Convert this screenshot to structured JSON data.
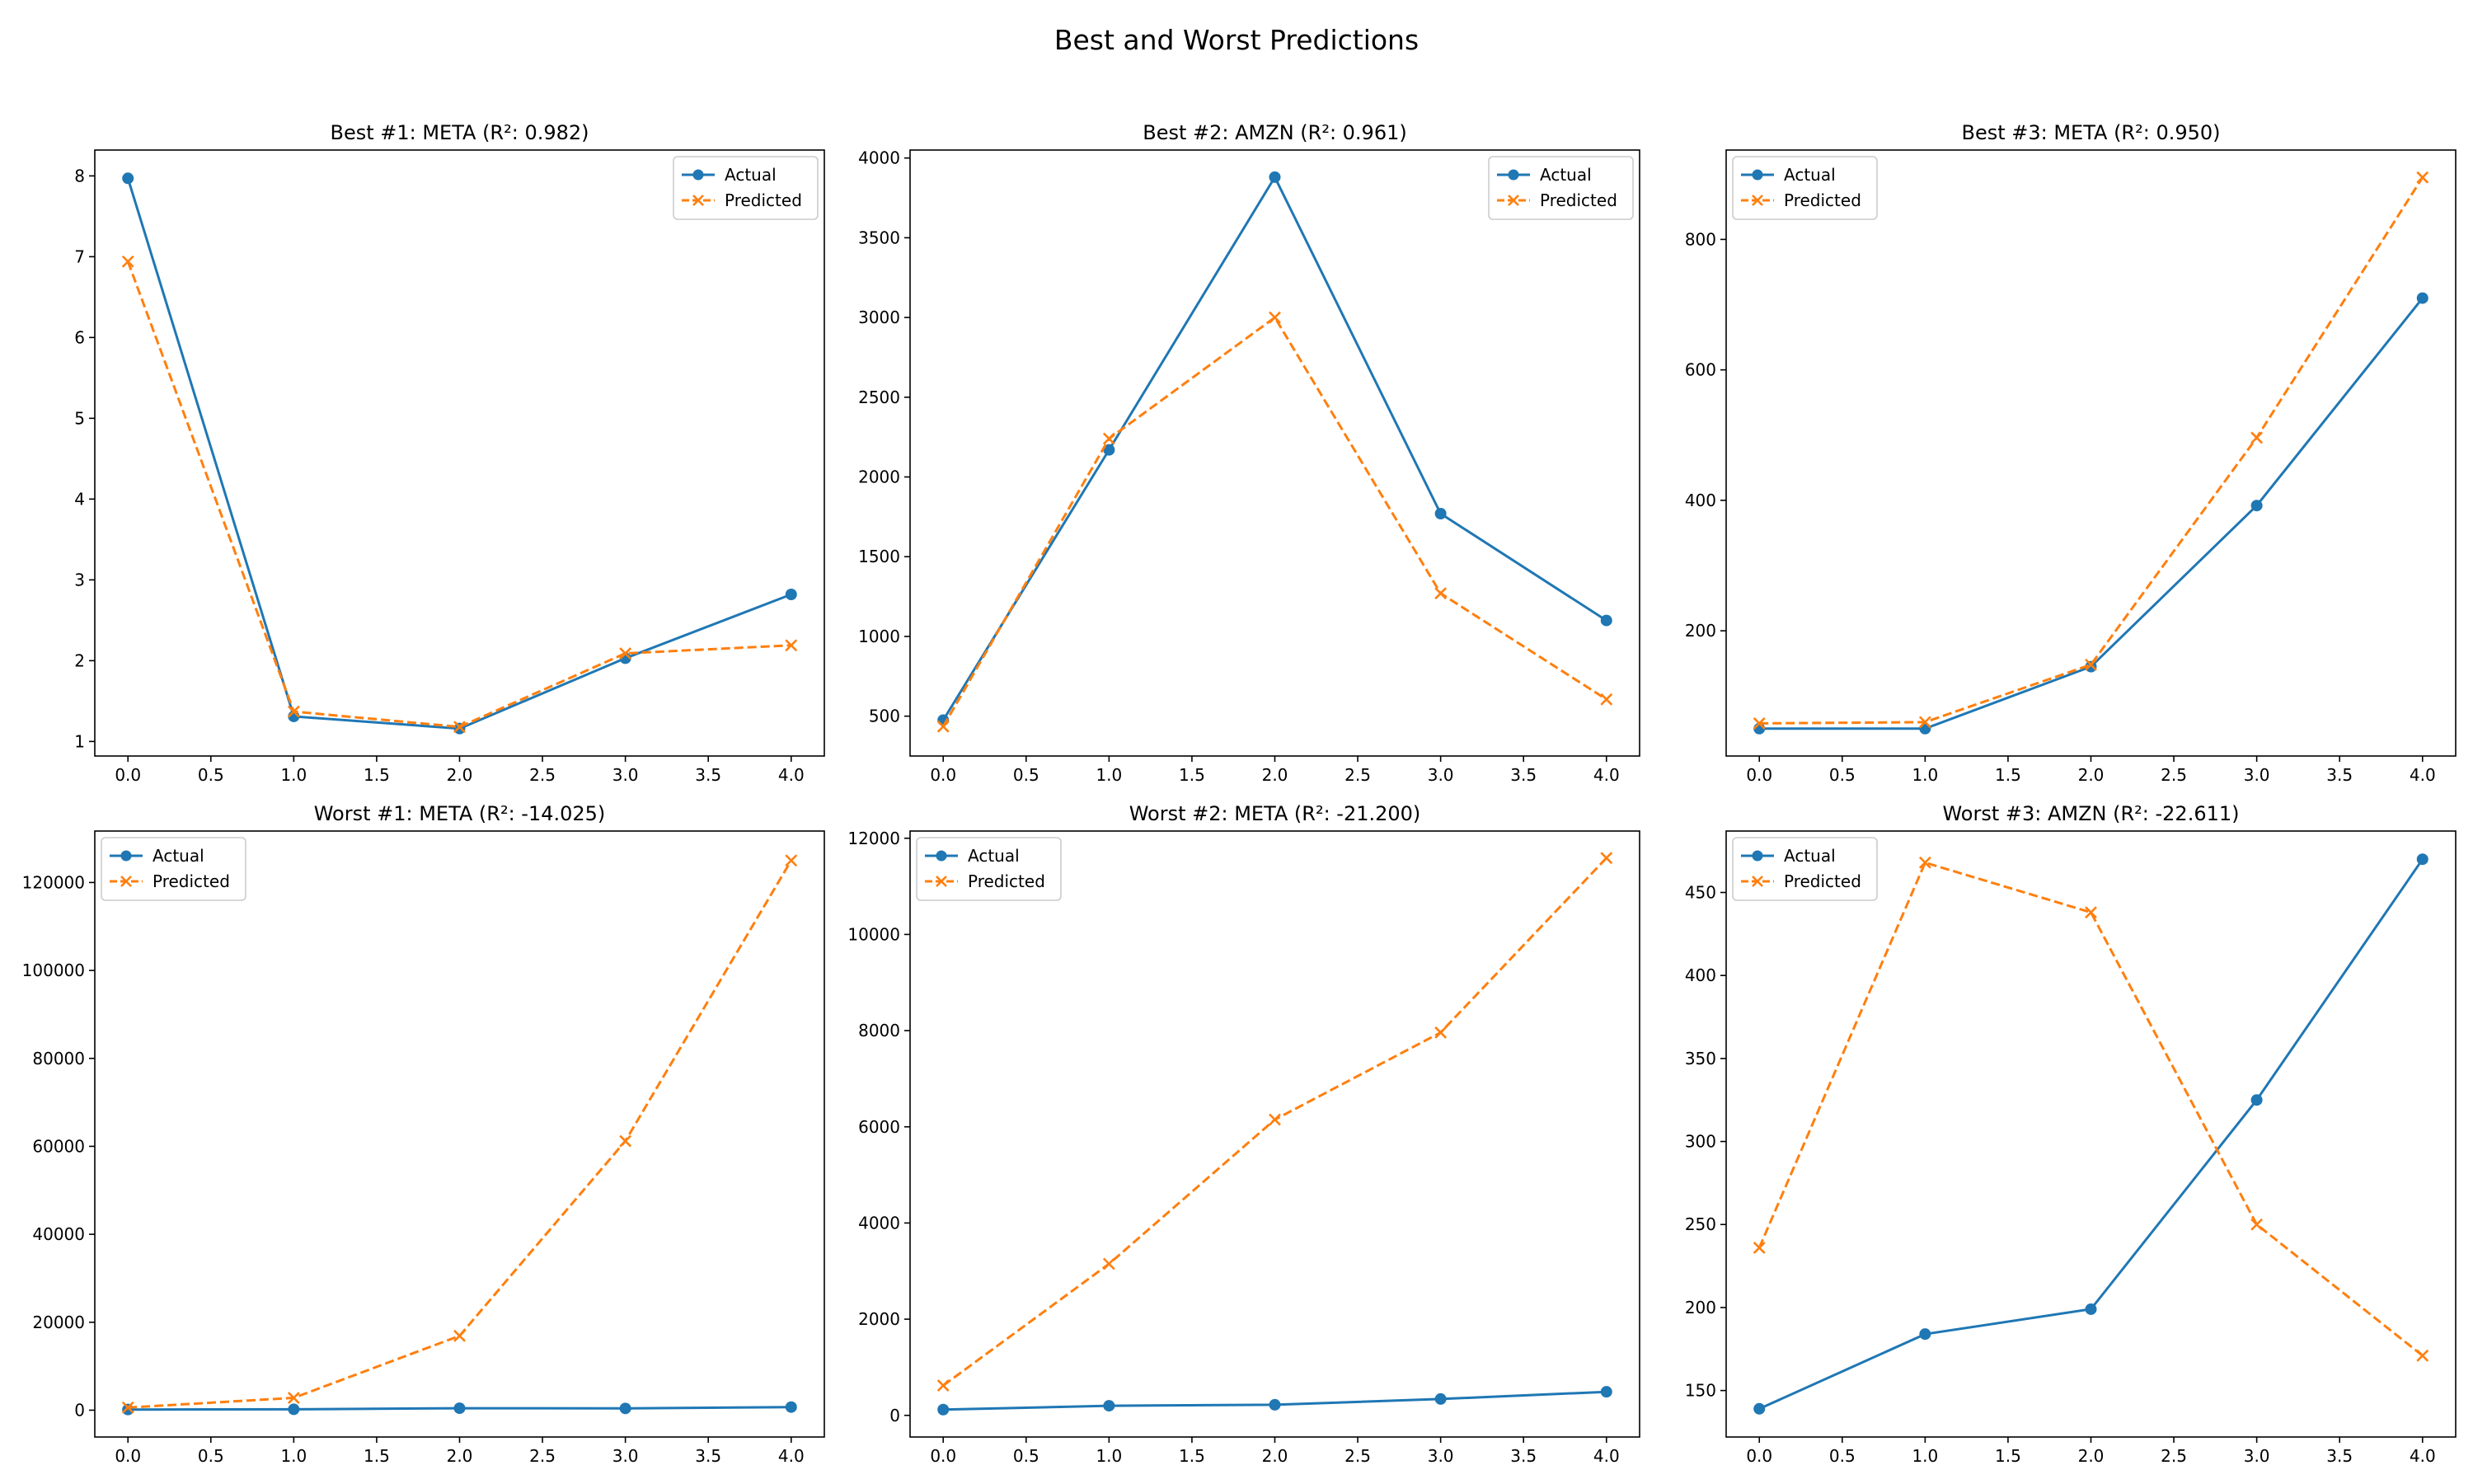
{
  "figure": {
    "suptitle": "Best and Worst Predictions"
  },
  "colors": {
    "actual": "#1f77b4",
    "predicted": "#ff7f0e"
  },
  "chart_data": [
    {
      "type": "line",
      "title": "Best #1: META (R²: 0.982)",
      "x": [
        0,
        1,
        2,
        3,
        4
      ],
      "series": [
        {
          "name": "Actual",
          "values": [
            7.97,
            1.31,
            1.16,
            2.03,
            2.82
          ]
        },
        {
          "name": "Predicted",
          "values": [
            6.94,
            1.37,
            1.18,
            2.09,
            2.19
          ]
        }
      ],
      "xlim": [
        -0.2,
        4.2
      ],
      "ylim": [
        0.82,
        8.32
      ],
      "xticks": [
        "0.0",
        "0.5",
        "1.0",
        "1.5",
        "2.0",
        "2.5",
        "3.0",
        "3.5",
        "4.0"
      ],
      "yticks": [
        "1",
        "2",
        "3",
        "4",
        "5",
        "6",
        "7",
        "8"
      ],
      "legend_loc": "upper right"
    },
    {
      "type": "line",
      "title": "Best #2: AMZN (R²: 0.961)",
      "x": [
        0,
        1,
        2,
        3,
        4
      ],
      "series": [
        {
          "name": "Actual",
          "values": [
            475,
            2170,
            3880,
            1770,
            1100
          ]
        },
        {
          "name": "Predicted",
          "values": [
            435,
            2240,
            3000,
            1270,
            605
          ]
        }
      ],
      "xlim": [
        -0.2,
        4.2
      ],
      "ylim": [
        250,
        4050
      ],
      "xticks": [
        "0.0",
        "0.5",
        "1.0",
        "1.5",
        "2.0",
        "2.5",
        "3.0",
        "3.5",
        "4.0"
      ],
      "yticks": [
        "500",
        "1000",
        "1500",
        "2000",
        "2500",
        "3000",
        "3500",
        "4000"
      ],
      "legend_loc": "upper right"
    },
    {
      "type": "line",
      "title": "Best #3: META (R²: 0.950)",
      "x": [
        0,
        1,
        2,
        3,
        4
      ],
      "series": [
        {
          "name": "Actual",
          "values": [
            50,
            50,
            145,
            392,
            710
          ]
        },
        {
          "name": "Predicted",
          "values": [
            58,
            60,
            148,
            496,
            895
          ]
        }
      ],
      "xlim": [
        -0.2,
        4.2
      ],
      "ylim": [
        8,
        937
      ],
      "xticks": [
        "0.0",
        "0.5",
        "1.0",
        "1.5",
        "2.0",
        "2.5",
        "3.0",
        "3.5",
        "4.0"
      ],
      "yticks": [
        "200",
        "400",
        "600",
        "800"
      ],
      "legend_loc": "upper left"
    },
    {
      "type": "line",
      "title": "Worst #1: META (R²: -14.025)",
      "x": [
        0,
        1,
        2,
        3,
        4
      ],
      "series": [
        {
          "name": "Actual",
          "values": [
            150,
            200,
            450,
            400,
            700
          ]
        },
        {
          "name": "Predicted",
          "values": [
            600,
            2800,
            16900,
            61200,
            125000
          ]
        }
      ],
      "xlim": [
        -0.2,
        4.2
      ],
      "ylim": [
        -6100,
        131700
      ],
      "xticks": [
        "0.0",
        "0.5",
        "1.0",
        "1.5",
        "2.0",
        "2.5",
        "3.0",
        "3.5",
        "4.0"
      ],
      "yticks": [
        "0",
        "20000",
        "40000",
        "60000",
        "80000",
        "100000",
        "120000"
      ],
      "legend_loc": "upper left"
    },
    {
      "type": "line",
      "title": "Worst #2: META (R²: -21.200)",
      "x": [
        0,
        1,
        2,
        3,
        4
      ],
      "series": [
        {
          "name": "Actual",
          "values": [
            120,
            200,
            220,
            340,
            490
          ]
        },
        {
          "name": "Predicted",
          "values": [
            620,
            3150,
            6150,
            7960,
            11590
          ]
        }
      ],
      "xlim": [
        -0.2,
        4.2
      ],
      "ylim": [
        -450,
        12150
      ],
      "xticks": [
        "0.0",
        "0.5",
        "1.0",
        "1.5",
        "2.0",
        "2.5",
        "3.0",
        "3.5",
        "4.0"
      ],
      "yticks": [
        "0",
        "2000",
        "4000",
        "6000",
        "8000",
        "10000",
        "12000"
      ],
      "legend_loc": "upper left"
    },
    {
      "type": "line",
      "title": "Worst #3: AMZN (R²: -22.611)",
      "x": [
        0,
        1,
        2,
        3,
        4
      ],
      "series": [
        {
          "name": "Actual",
          "values": [
            139,
            184,
            199,
            325,
            470
          ]
        },
        {
          "name": "Predicted",
          "values": [
            236,
            468,
            438,
            250,
            171
          ]
        }
      ],
      "xlim": [
        -0.2,
        4.2
      ],
      "ylim": [
        122,
        487
      ],
      "xticks": [
        "0.0",
        "0.5",
        "1.0",
        "1.5",
        "2.0",
        "2.5",
        "3.0",
        "3.5",
        "4.0"
      ],
      "yticks": [
        "150",
        "200",
        "250",
        "300",
        "350",
        "400",
        "450"
      ],
      "legend_loc": "upper left"
    }
  ]
}
